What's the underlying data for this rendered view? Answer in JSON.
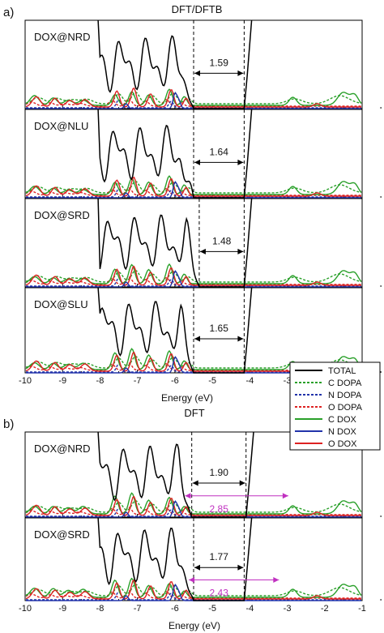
{
  "figure": {
    "section_a": {
      "letter": "a)",
      "title": "DFT/DFTB"
    },
    "section_b": {
      "letter": "b)",
      "title": "DFT"
    },
    "xlabel": "Energy (eV)"
  },
  "legend": {
    "entries": [
      {
        "label": "TOTAL",
        "color": "#000000",
        "style": "solid"
      },
      {
        "label": "C DOPA",
        "color": "#2aa02a",
        "style": "dashed"
      },
      {
        "label": "N DOPA",
        "color": "#2233aa",
        "style": "dashed"
      },
      {
        "label": "O DOPA",
        "color": "#dd2222",
        "style": "dashed"
      },
      {
        "label": "C DOX",
        "color": "#2aa02a",
        "style": "solid"
      },
      {
        "label": "N DOX",
        "color": "#2233aa",
        "style": "solid"
      },
      {
        "label": "O DOX",
        "color": "#dd2222",
        "style": "solid"
      }
    ]
  },
  "chart_data": [
    {
      "type": "line",
      "section": "a",
      "name": "DOX@NRD",
      "xlim": [
        -10,
        -1
      ],
      "gap_edges": [
        -5.5,
        -4.15
      ],
      "gap": {
        "value": "1.59",
        "color": "#000000"
      }
    },
    {
      "type": "line",
      "section": "a",
      "name": "DOX@NLU",
      "xlim": [
        -10,
        -1
      ],
      "gap_edges": [
        -5.5,
        -4.15
      ],
      "gap": {
        "value": "1.64",
        "color": "#000000"
      }
    },
    {
      "type": "line",
      "section": "a",
      "name": "DOX@SRD",
      "xlim": [
        -10,
        -1
      ],
      "gap_edges": [
        -5.35,
        -4.15
      ],
      "gap": {
        "value": "1.48",
        "color": "#000000"
      }
    },
    {
      "type": "line",
      "section": "a",
      "name": "DOX@SLU",
      "xlim": [
        -10,
        -1
      ],
      "gap_edges": [
        -5.5,
        -4.15
      ],
      "gap": {
        "value": "1.65",
        "color": "#000000"
      },
      "xticks": [
        "-10",
        "-9",
        "-8",
        "-7",
        "-6",
        "-5",
        "-4",
        "-3",
        "-2",
        "-1"
      ]
    },
    {
      "type": "line",
      "section": "b",
      "name": "DOX@NRD",
      "xlim": [
        -10,
        -1
      ],
      "gap_edges": [
        -5.55,
        -4.1
      ],
      "gap": {
        "value": "1.90",
        "color": "#000000"
      },
      "gap2": {
        "value": "2.85",
        "range": [
          -5.75,
          -2.95
        ],
        "color": "#c030c0"
      }
    },
    {
      "type": "line",
      "section": "b",
      "name": "DOX@SRD",
      "xlim": [
        -10,
        -1
      ],
      "gap_edges": [
        -5.5,
        -4.15
      ],
      "gap": {
        "value": "1.77",
        "color": "#000000"
      },
      "gap2": {
        "value": "2.43",
        "range": [
          -5.65,
          -3.2
        ],
        "color": "#c030c0"
      },
      "xticks": [
        "-10",
        "-9",
        "-8",
        "-7",
        "-6",
        "-5",
        "-4",
        "-3",
        "-2",
        "-1"
      ]
    }
  ]
}
